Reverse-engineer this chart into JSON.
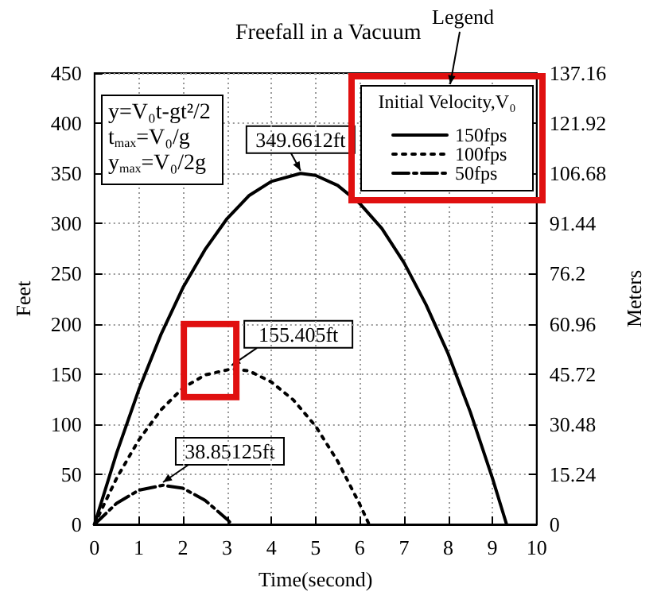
{
  "chart_data": {
    "type": "line",
    "title": "Freefall in a Vacuum",
    "xlabel": "Time(second)",
    "ylabel": "Feet",
    "y2label": "Meters",
    "legend_title": "Initial Velocity,V₀",
    "series": [
      {
        "name": "150fps",
        "color": "#000000",
        "line_style": "solid",
        "x": [
          0,
          0.5,
          1,
          1.5,
          2,
          2.5,
          3,
          3.5,
          4,
          4.66,
          5,
          5.5,
          6,
          6.5,
          7,
          7.5,
          8,
          8.5,
          9,
          9.32
        ],
        "values": [
          0,
          71,
          134,
          189,
          236,
          274,
          305,
          328,
          342,
          350,
          348,
          338,
          320,
          295,
          261,
          219,
          170,
          112,
          46,
          0
        ]
      },
      {
        "name": "100fps",
        "color": "#000000",
        "line_style": "dotted",
        "x": [
          0,
          0.5,
          1,
          1.5,
          2,
          2.5,
          3.1,
          3.5,
          4,
          4.5,
          5,
          5.5,
          6,
          6.21
        ],
        "values": [
          0,
          46,
          84,
          114,
          136,
          149,
          155,
          153,
          142,
          124,
          98,
          63,
          20,
          0
        ]
      },
      {
        "name": "50fps",
        "color": "#000000",
        "line_style": "dashed",
        "x": [
          0,
          0.5,
          1,
          1.55,
          2,
          2.5,
          3,
          3.11
        ],
        "values": [
          0,
          21,
          34,
          39,
          36,
          24,
          5,
          0
        ]
      }
    ],
    "xlim": [
      0,
      10
    ],
    "xticks": [
      0,
      1,
      2,
      3,
      4,
      5,
      6,
      7,
      8,
      9,
      10
    ],
    "ylim": [
      0,
      450
    ],
    "yticks": [
      0,
      50,
      100,
      150,
      200,
      250,
      300,
      350,
      400,
      450
    ],
    "y2lim": [
      0,
      137.16
    ],
    "y2ticks": [
      0,
      15.24,
      30.48,
      45.72,
      60.96,
      76.2,
      91.44,
      106.68,
      121.92,
      137.16
    ],
    "grid": true,
    "legend": "top right",
    "marker": "none",
    "annotations": [
      "y=V₀t-gt²/2",
      "t$_{max}$=V₀/g",
      "y$_{max}$=V₀/2g",
      "Legend",
      {
        "text": "349.6612ft",
        "x": 4.66,
        "y": 349.66
      },
      {
        "text": "155.405ft",
        "x": 3.1,
        "y": 155.4
      },
      {
        "text": "38.85125ft",
        "x": 1.55,
        "y": 38.85
      }
    ]
  }
}
